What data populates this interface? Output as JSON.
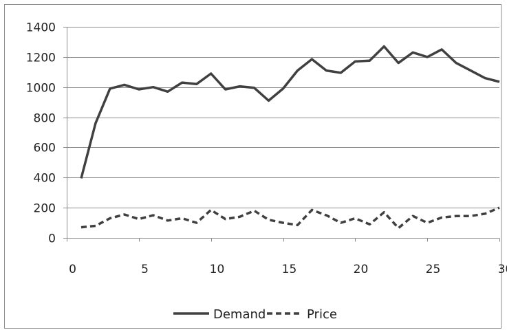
{
  "chart_data": {
    "type": "line",
    "title": "",
    "xlabel": "",
    "ylabel": "",
    "xlim": [
      0,
      30
    ],
    "ylim": [
      0,
      1400
    ],
    "x_ticks": [
      0,
      5,
      10,
      15,
      20,
      25,
      30
    ],
    "y_ticks": [
      0,
      200,
      400,
      600,
      800,
      1000,
      1200,
      1400
    ],
    "grid": "horizontal",
    "legend_position": "bottom",
    "x": [
      1,
      2,
      3,
      4,
      5,
      6,
      7,
      8,
      9,
      10,
      11,
      12,
      13,
      14,
      15,
      16,
      17,
      18,
      19,
      20,
      21,
      22,
      23,
      24,
      25,
      26,
      27,
      28,
      29,
      30
    ],
    "series": [
      {
        "name": "Demand",
        "style": "solid",
        "color": "#404040",
        "values": [
          395,
          760,
          990,
          1015,
          985,
          1000,
          970,
          1030,
          1020,
          1090,
          985,
          1005,
          995,
          910,
          990,
          1110,
          1185,
          1110,
          1095,
          1170,
          1175,
          1270,
          1160,
          1230,
          1200,
          1250,
          1160,
          1110,
          1060,
          1035
        ]
      },
      {
        "name": "Price",
        "style": "dashed",
        "color": "#404040",
        "values": [
          70,
          80,
          130,
          155,
          125,
          150,
          115,
          130,
          100,
          185,
          125,
          140,
          180,
          120,
          100,
          85,
          185,
          150,
          100,
          130,
          90,
          170,
          65,
          145,
          100,
          135,
          145,
          145,
          160,
          200
        ]
      }
    ]
  }
}
